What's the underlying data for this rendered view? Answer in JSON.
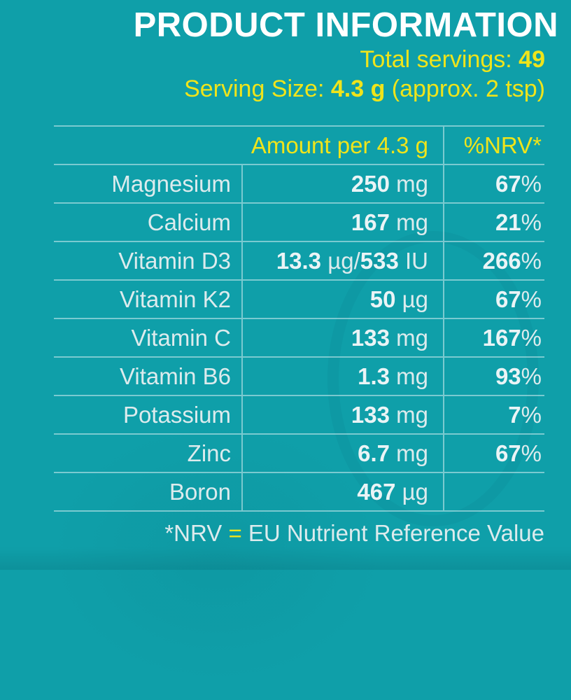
{
  "colors": {
    "bg": "#0f9fa9",
    "yellow": "#efe41b",
    "light": "#dcebed",
    "white": "#ffffff",
    "grid": "rgba(230,246,248,0.5)"
  },
  "header": {
    "title": "PRODUCT INFORMATION",
    "total_servings_label": "Total servings: ",
    "total_servings_value": "49",
    "serving_size_label": "Serving Size: ",
    "serving_size_value": "4.3 g",
    "serving_size_note": " (approx. 2 tsp)"
  },
  "table": {
    "amount_header": "Amount per 4.3 g",
    "nrv_header": "%NRV*",
    "rows": [
      {
        "name": "Magnesium",
        "amount": [
          {
            "t": "250",
            "b": true
          },
          {
            "t": " mg",
            "b": false
          }
        ],
        "nrv": [
          {
            "t": "67",
            "b": true
          },
          {
            "t": "%",
            "b": false
          }
        ]
      },
      {
        "name": "Calcium",
        "amount": [
          {
            "t": "167",
            "b": true
          },
          {
            "t": " mg",
            "b": false
          }
        ],
        "nrv": [
          {
            "t": "21",
            "b": true
          },
          {
            "t": "%",
            "b": false
          }
        ]
      },
      {
        "name": "Vitamin D3",
        "amount": [
          {
            "t": "13.3",
            "b": true
          },
          {
            "t": " µg/",
            "b": false
          },
          {
            "t": "533",
            "b": true
          },
          {
            "t": " IU",
            "b": false
          }
        ],
        "nrv": [
          {
            "t": "266",
            "b": true
          },
          {
            "t": "%",
            "b": false
          }
        ]
      },
      {
        "name": "Vitamin K2",
        "amount": [
          {
            "t": "50",
            "b": true
          },
          {
            "t": " µg",
            "b": false
          }
        ],
        "nrv": [
          {
            "t": "67",
            "b": true
          },
          {
            "t": "%",
            "b": false
          }
        ]
      },
      {
        "name": "Vitamin C",
        "amount": [
          {
            "t": "133",
            "b": true
          },
          {
            "t": " mg",
            "b": false
          }
        ],
        "nrv": [
          {
            "t": "167",
            "b": true
          },
          {
            "t": "%",
            "b": false
          }
        ]
      },
      {
        "name": "Vitamin B6",
        "amount": [
          {
            "t": "1.3",
            "b": true
          },
          {
            "t": " mg",
            "b": false
          }
        ],
        "nrv": [
          {
            "t": "93",
            "b": true
          },
          {
            "t": "%",
            "b": false
          }
        ]
      },
      {
        "name": "Potassium",
        "amount": [
          {
            "t": "133",
            "b": true
          },
          {
            "t": " mg",
            "b": false
          }
        ],
        "nrv": [
          {
            "t": "7",
            "b": true
          },
          {
            "t": "%",
            "b": false
          }
        ]
      },
      {
        "name": "Zinc",
        "amount": [
          {
            "t": "6.7",
            "b": true
          },
          {
            "t": " mg",
            "b": false
          }
        ],
        "nrv": [
          {
            "t": "67",
            "b": true
          },
          {
            "t": "%",
            "b": false
          }
        ]
      },
      {
        "name": "Boron",
        "amount": [
          {
            "t": "467",
            "b": true
          },
          {
            "t": " µg",
            "b": false
          }
        ],
        "nrv": []
      }
    ]
  },
  "footnote": {
    "prefix": "*NRV ",
    "equals": "=",
    "suffix": " EU Nutrient Reference Value"
  }
}
